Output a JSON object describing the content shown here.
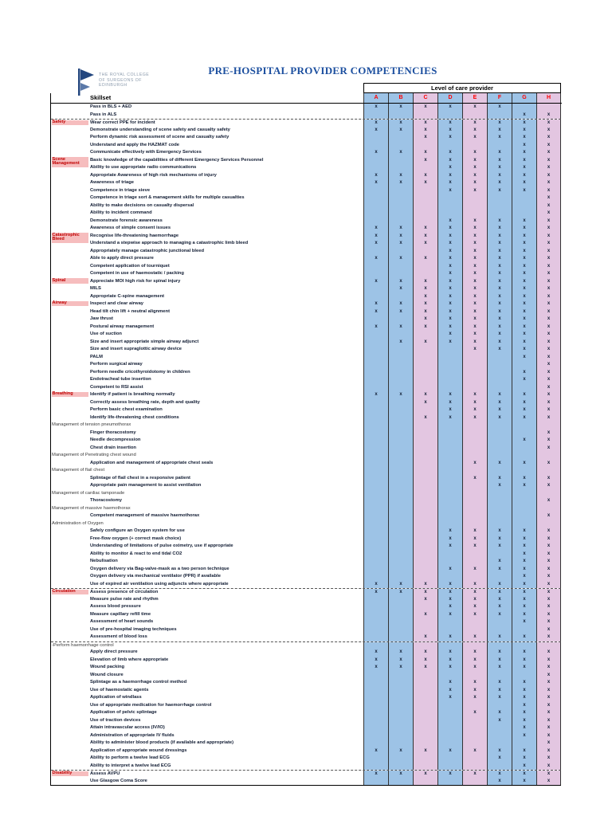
{
  "page": {
    "title": "PRE-HOSPITAL PROVIDER COMPETENCIES"
  },
  "logo": {
    "lines": [
      "THE ROYAL COLLEGE",
      "OF SURGEONS OF",
      "EDINBURGH"
    ]
  },
  "colors": {
    "title": "#1C4F9F",
    "column_letter": "#FF0000",
    "category_text": "#C00000",
    "category_highlight": "#F6BDBE",
    "blue_band": "#9DC3E6",
    "pink_band": "#E3C6E1"
  },
  "table": {
    "corner_label": "Skillset",
    "care_level_header": "Level of care provider",
    "mark": "x",
    "columns": [
      {
        "id": "A",
        "color": "#9DC3E6"
      },
      {
        "id": "B",
        "color": "#9DC3E6"
      },
      {
        "id": "C",
        "color": "#E3C6E1"
      },
      {
        "id": "D",
        "color": "#9DC3E6"
      },
      {
        "id": "E",
        "color": "#E3C6E1"
      },
      {
        "id": "F",
        "color": "#9DC3E6"
      },
      {
        "id": "G",
        "color": "#9DC3E6"
      },
      {
        "id": "H",
        "color": "#E3C6E1"
      }
    ],
    "rows": [
      {
        "t": "Pass in BLS + AED",
        "m": "ABCDEF"
      },
      {
        "t": "Pass in ALS",
        "m": "GH"
      },
      {
        "c": "Safety",
        "d": 1,
        "t": "Wear correct PPE for incident",
        "m": "ABCDEFGH"
      },
      {
        "t": "Demonstrate understanding of scene safety and casualty safety",
        "m": "ABCDEFGH"
      },
      {
        "t": "Perform dynamic risk assessment of scene and casualty safety",
        "m": "CDEFGH"
      },
      {
        "t": "Understand and apply the HAZMAT code",
        "m": "GH"
      },
      {
        "t": "Communicate effectively with Emergency Services",
        "m": "ABCDEFGH"
      },
      {
        "c": "Scene Management",
        "t": "Basic knowledge of the capabilities of different Emergency Services Personnel",
        "m": "CDEFGH"
      },
      {
        "t": "Ability to use appropriate radio communications",
        "m": "DEFGH"
      },
      {
        "t": "Appropriate Awareness of high risk mechanisms of injury",
        "m": "ABCDEFGH"
      },
      {
        "t": "Awareness of triage",
        "m": "ABCDEFGH"
      },
      {
        "t": "Competence in triage sieve",
        "m": "DEFGH"
      },
      {
        "t": "Competence in triage sort & management skills for multiple casualties",
        "m": "H"
      },
      {
        "t": "Ability to make decisions on casualty dispersal",
        "m": "H"
      },
      {
        "t": "Ability to incident command",
        "m": "H"
      },
      {
        "t": "Demonstrate forensic awareness",
        "m": "DEFGH"
      },
      {
        "t": "Awareness of simple consent issues",
        "m": "ABCDEFGH"
      },
      {
        "c": "Catastrophic Bleed",
        "t": "Recognise life-threatening haemorrhage",
        "m": "ABCDEFGH"
      },
      {
        "t": "Understand a stepwise approach to managing a catastrophic limb bleed",
        "m": "ABCDEFGH"
      },
      {
        "t": "Appropriately manage catastrophic junctional bleed",
        "m": "DEFGH"
      },
      {
        "t": "Able to apply direct pressure",
        "m": "ABCDEFGH"
      },
      {
        "t": "Competent application of tourniquet",
        "m": "DEFGH"
      },
      {
        "t": "Competent in use of haemostatic / packing",
        "m": "DEFGH"
      },
      {
        "c": "Spinal",
        "t": "Appreciate MOI high risk for spinal injury",
        "m": "ABCDEFGH"
      },
      {
        "t": "MILS",
        "m": "BCDEFGH"
      },
      {
        "t": "Appropriate C-spine management",
        "m": "CDEFGH"
      },
      {
        "c": "Airway",
        "t": "Inspect and clear airway",
        "m": "ABCDEFGH"
      },
      {
        "t": "Head tilt chin lift + neutral alignment",
        "m": "ABCDEFGH"
      },
      {
        "t": "Jaw thrust",
        "m": "CDEFGH"
      },
      {
        "t": "Postural airway management",
        "m": "ABCDEFGH"
      },
      {
        "t": "Use of suction",
        "m": "DEFGH"
      },
      {
        "t": "Size and insert appropriate simple airway adjunct",
        "m": "BCDEFGH"
      },
      {
        "t": "Size and insert supraglottic airway device",
        "m": "EFGH"
      },
      {
        "t": "PALM",
        "m": "GH"
      },
      {
        "t": "Perform surgical airway",
        "m": "H"
      },
      {
        "t": "Perform needle cricothyroidotomy in children",
        "m": "GH"
      },
      {
        "t": "Endotracheal tube insertion",
        "m": "GH"
      },
      {
        "t": "Competent to RSI assist",
        "m": "H"
      },
      {
        "c": "Breathing",
        "t": "Identify if patient is breathing normally",
        "m": "ABCDEFGH"
      },
      {
        "t": "Correctly assess breathing rate, depth and quality",
        "m": "CDEFGH"
      },
      {
        "t": "Perform basic chest examination",
        "m": "DEFGH"
      },
      {
        "t": "Identify life-threatening chest conditions",
        "m": "CDEFGH"
      },
      {
        "sub": 1,
        "t": "Management of tension pneumothorax"
      },
      {
        "t": "Finger thoracostomy",
        "m": "H"
      },
      {
        "t": "Needle decompression",
        "m": "GH"
      },
      {
        "t": "Chest drain insertion",
        "m": "H"
      },
      {
        "sub": 1,
        "t": "Management of Penetrating chest wound"
      },
      {
        "t": "Application and management of appropriate chest seals",
        "m": "EFGH"
      },
      {
        "sub": 1,
        "t": "Management of flail chest"
      },
      {
        "t": "Splintage of flail chest in a responsive patient",
        "m": "EFGH"
      },
      {
        "t": "Appropriate pain management to assist ventilation",
        "m": "FGH"
      },
      {
        "sub": 1,
        "t": "Management of cardiac tamponade"
      },
      {
        "t": "Thoracostomy",
        "m": "H"
      },
      {
        "sub": 1,
        "t": "Management of massive haemothorax"
      },
      {
        "t": "Competent management of massive haemothorax",
        "m": "H"
      },
      {
        "sub": 1,
        "t": "Administration of Oxygen"
      },
      {
        "t": "Safely configure an Oxygen system for use",
        "m": "DEFGH"
      },
      {
        "t": "Free-flow oxygen (+ correct mask choice)",
        "m": "DEFGH"
      },
      {
        "t": "Understanding of limitations of pulse oximetry, use if appropriate",
        "m": "DEFGH"
      },
      {
        "t": "Ability to monitor & react to end tidal CO2",
        "m": "GH"
      },
      {
        "t": "Nebulisation",
        "m": "FGH"
      },
      {
        "t": "Oxygen delivery via Bag-valve-mask as a two person technique",
        "m": "DEFGH"
      },
      {
        "t": "Oxygen delivery via mechanical ventilator (PPR) if available",
        "m": "GH"
      },
      {
        "t": "Use of expired air ventilation using adjuncts where appropriate",
        "m": "ABCDEFGH"
      },
      {
        "c": "Circulation",
        "d": 1,
        "t": "Assess presence of circulation",
        "m": "ABCDEFGH"
      },
      {
        "t": "Measure pulse rate and rhythm",
        "m": "CDEFGH"
      },
      {
        "t": "Assess blood pressure",
        "m": "DEFGH"
      },
      {
        "t": "Measure capillary refill time",
        "m": "CDEFGH"
      },
      {
        "t": "Assessment of heart sounds",
        "m": "GH"
      },
      {
        "t": "Use of pre-hospital imaging techniques",
        "m": "H"
      },
      {
        "t": "Assessment of blood loss",
        "m": "CDEFGH"
      },
      {
        "sub": 1,
        "d": 1,
        "t": "-Perform haemorrhage control"
      },
      {
        "t": "Apply direct pressure",
        "m": "ABCDEFGH"
      },
      {
        "t": "Elevation of limb where appropriate",
        "m": "ABCDEFGH"
      },
      {
        "t": "Wound packing",
        "m": "ABCDEFGH"
      },
      {
        "t": "Wound closure",
        "m": "H"
      },
      {
        "t": "Splintage as a haemorrhage control method",
        "m": "DEFGH"
      },
      {
        "t": "Use of haemostatic agents",
        "m": "DEFGH"
      },
      {
        "t": "Application of windlass",
        "m": "DEFGH"
      },
      {
        "t": "Use of appropriate medication for haemorrhage control",
        "m": "GH"
      },
      {
        "t": "Application of pelvic splintage",
        "m": "EFGH"
      },
      {
        "t": "Use of traction devices",
        "m": "FGH"
      },
      {
        "t": "Attain intravascular access (IV/IO)",
        "m": "GH"
      },
      {
        "t": "Administration of appropriate IV fluids",
        "m": "GH"
      },
      {
        "t": "Ability to administer blood products (if available and appropriate)",
        "m": "H"
      },
      {
        "t": "Application of appropriate wound dressings",
        "m": "ABCDEFGH"
      },
      {
        "t": "Ability to perform a twelve lead ECG",
        "m": "FGH"
      },
      {
        "t": "Ability to interpret a twelve lead ECG",
        "m": "GH"
      },
      {
        "c": "Disability",
        "d": 1,
        "t": "Assess AVPU",
        "m": "ABCDEFGH"
      },
      {
        "t": "Use Glasgow Coma Score",
        "m": "FGH"
      }
    ]
  }
}
